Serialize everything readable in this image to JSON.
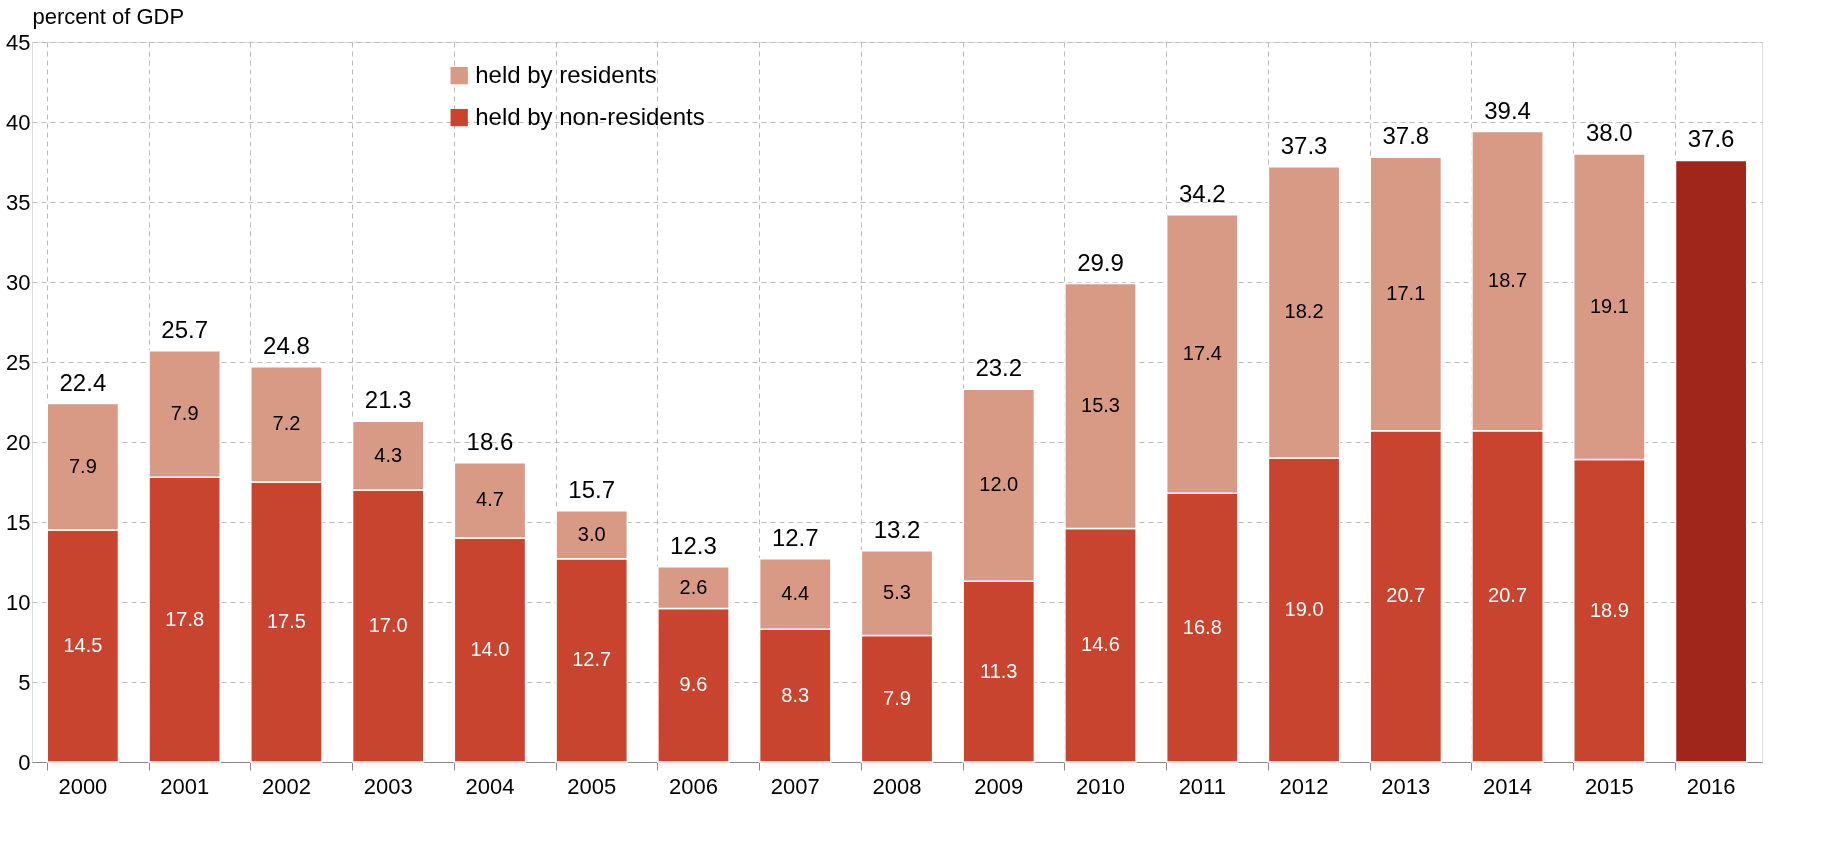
{
  "chart_data": {
    "type": "bar",
    "stacked": true,
    "ylabel": "percent of GDP",
    "categories": [
      "2000",
      "2001",
      "2002",
      "2003",
      "2004",
      "2005",
      "2006",
      "2007",
      "2008",
      "2009",
      "2010",
      "2011",
      "2012",
      "2013",
      "2014",
      "2015",
      "2016"
    ],
    "series": [
      {
        "name": "held by non-residents",
        "color": "#c8442f",
        "colors": [
          "#c8442f",
          "#c8442f",
          "#c8442f",
          "#c8442f",
          "#c8442f",
          "#c8442f",
          "#c8442f",
          "#c8442f",
          "#c8442f",
          "#c8442f",
          "#c8442f",
          "#c8442f",
          "#c8442f",
          "#c8442f",
          "#c8442f",
          "#c8442f",
          "#a0261b"
        ],
        "values": [
          14.5,
          17.8,
          17.5,
          17.0,
          14.0,
          12.7,
          9.6,
          8.3,
          7.9,
          11.3,
          14.6,
          16.8,
          19.0,
          20.7,
          20.7,
          18.9,
          37.6
        ],
        "value_labels": [
          "14.5",
          "17.8",
          "17.5",
          "17.0",
          "14.0",
          "12.7",
          "9.6",
          "8.3",
          "7.9",
          "11.3",
          "14.6",
          "16.8",
          "19.0",
          "20.7",
          "20.7",
          "18.9",
          null
        ]
      },
      {
        "name": "held by residents",
        "color": "#d99a85",
        "values": [
          7.9,
          7.9,
          7.2,
          4.3,
          4.7,
          3.0,
          2.6,
          4.4,
          5.3,
          12.0,
          15.3,
          17.4,
          18.2,
          17.1,
          18.7,
          19.1,
          null
        ],
        "value_labels": [
          "7.9",
          "7.9",
          "7.2",
          "4.3",
          "4.7",
          "3.0",
          "2.6",
          "4.4",
          "5.3",
          "12.0",
          "15.3",
          "17.4",
          "18.2",
          "17.1",
          "18.7",
          "19.1",
          null
        ]
      }
    ],
    "totals": [
      "22.4",
      "25.7",
      "24.8",
      "21.3",
      "18.6",
      "15.7",
      "12.3",
      "12.7",
      "13.2",
      "23.2",
      "29.9",
      "34.2",
      "37.3",
      "37.8",
      "39.4",
      "38.0",
      "37.6"
    ],
    "ylim": [
      0,
      45
    ],
    "yticks": [
      0,
      5,
      10,
      15,
      20,
      25,
      30,
      35,
      40,
      45
    ],
    "grid": true,
    "legend": "top"
  }
}
